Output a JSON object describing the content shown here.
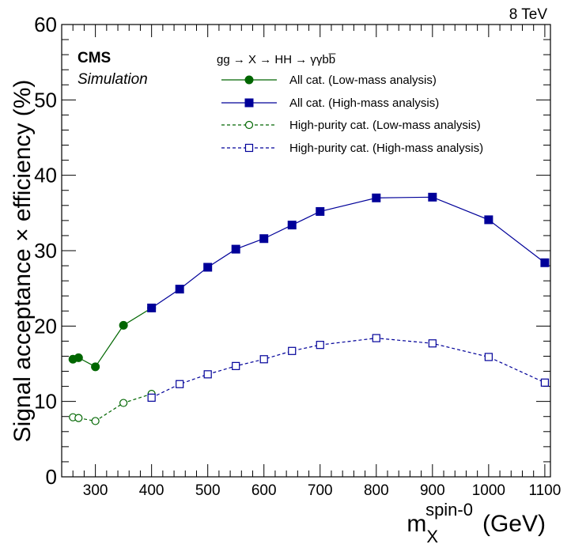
{
  "chart_data": {
    "type": "line",
    "energy_label": "8 TeV",
    "experiment": "CMS",
    "experiment_sub": "Simulation",
    "legend_title": "gg → X → HH → γγbb̅",
    "legend_position": "top-right",
    "ylabel": "Signal acceptance × efficiency (%)",
    "xlabel": {
      "main": "m",
      "sub": "X",
      "sup": "spin-0",
      "unit": "(GeV)"
    },
    "xlim": [
      240,
      1110
    ],
    "ylim": [
      0,
      60
    ],
    "xticks": [
      300,
      400,
      500,
      600,
      700,
      800,
      900,
      1000,
      1100
    ],
    "yticks": [
      0,
      10,
      20,
      30,
      40,
      50,
      60
    ],
    "grid": false,
    "colors": {
      "green": "#006600",
      "blue": "#000099"
    },
    "series": [
      {
        "name": "All cat. (Low-mass analysis)",
        "color": "#006600",
        "marker": "filled-circle",
        "dashed": false,
        "x": [
          260,
          270,
          300,
          350,
          400
        ],
        "y": [
          15.6,
          15.8,
          14.6,
          20.1,
          22.4
        ]
      },
      {
        "name": "All cat. (High-mass analysis)",
        "color": "#000099",
        "marker": "filled-square",
        "dashed": false,
        "x": [
          400,
          450,
          500,
          550,
          600,
          650,
          700,
          800,
          900,
          1000,
          1100
        ],
        "y": [
          22.4,
          24.9,
          27.8,
          30.2,
          31.6,
          33.4,
          35.2,
          37.0,
          37.1,
          34.1,
          28.4
        ]
      },
      {
        "name": "High-purity cat. (Low-mass analysis)",
        "color": "#006600",
        "marker": "open-circle",
        "dashed": true,
        "x": [
          260,
          270,
          300,
          350,
          400
        ],
        "y": [
          7.9,
          7.8,
          7.4,
          9.8,
          11.0
        ]
      },
      {
        "name": "High-purity cat. (High-mass analysis)",
        "color": "#000099",
        "marker": "open-square",
        "dashed": true,
        "x": [
          400,
          450,
          500,
          550,
          600,
          650,
          700,
          800,
          900,
          1000,
          1100
        ],
        "y": [
          10.5,
          12.3,
          13.6,
          14.7,
          15.6,
          16.7,
          17.5,
          18.4,
          17.7,
          15.9,
          12.5
        ]
      }
    ]
  }
}
